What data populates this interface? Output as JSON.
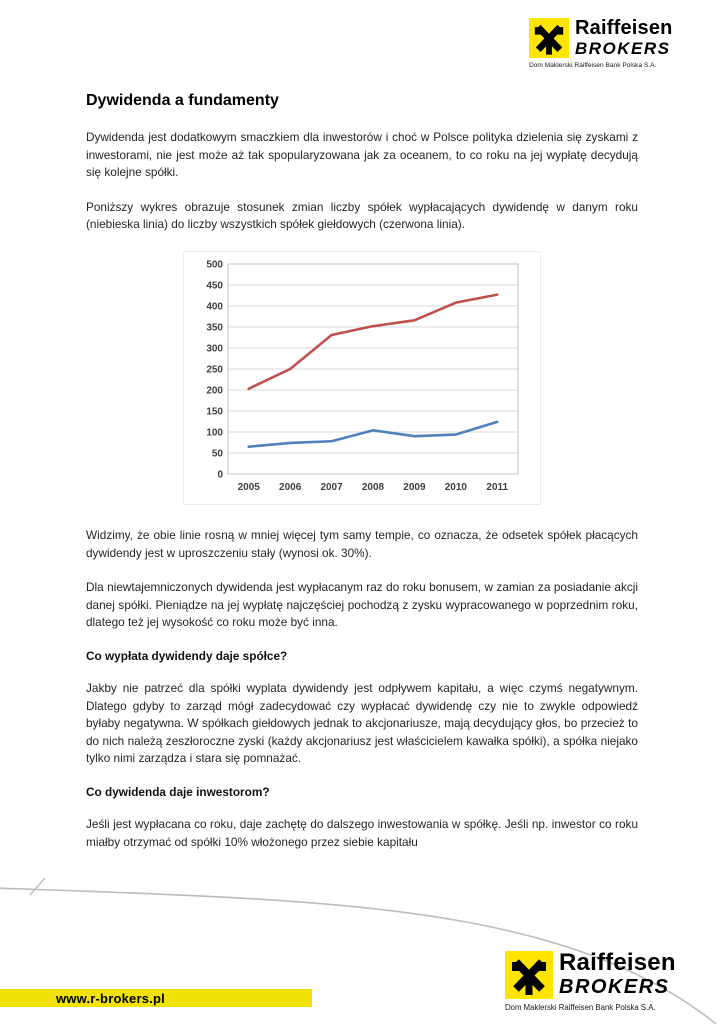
{
  "brand": {
    "name": "Raiffeisen",
    "sub": "BROKERS",
    "tagline": "Dom Maklerski Raiffeisen Bank Polska S.A."
  },
  "article": {
    "title": "Dywidenda a fundamenty",
    "p1": "Dywidenda jest dodatkowym smaczkiem dla inwestorów i choć w Polsce polityka dzielenia się zyskami z inwestorami, nie jest może aż tak spopularyzowana jak za oceanem, to co roku na jej wypłatę decydują się kolejne spółki.",
    "p2": "Poniższy wykres obrazuje stosunek zmian liczby spółek wypłacających dywidendę w danym roku (niebieska linia)  do liczby wszystkich spółek giełdowych (czerwona linia).",
    "p3": "Widzimy, że obie linie rosną w mniej więcej tym samy tempie, co oznacza, że odsetek spółek płacących dywidendy jest w uproszczeniu stały (wynosi ok. 30%).",
    "p4": "Dla niewtajemniczonych dywidenda jest wypłacanym raz do roku bonusem, w zamian za posiadanie akcji danej spółki. Pieniądze na jej wypłatę najczęściej pochodzą z zysku wypracowanego w poprzednim roku, dlatego też jej wysokość co roku może być inna.",
    "h2a": "Co wypłata dywidendy daje spółce?",
    "p5": "Jakby nie patrzeć dla spółki wyplata dywidendy jest odpływem kapitału, a więc czymś negatywnym. Dlatego gdyby to zarząd mógł zadecydować czy wypłacać dywidendę czy nie to zwykle odpowiedź byłaby negatywna. W spółkach giełdowych jednak to akcjonariusze, mają decydujący głos, bo przecież to do nich należą zeszłoroczne zyski (każdy akcjonariusz jest właścicielem kawałka spółki), a spółka niejako tylko nimi zarządza i stara się pomnażać.",
    "h2b": "Co dywidenda daje inwestorom?",
    "p6": "Jeśli jest wypłacana co roku, daje zachętę do dalszego inwestowania w spółkę. Jeśli np. inwestor co roku miałby otrzymać od spółki 10% włożonego przez siebie kapitału"
  },
  "chart_data": {
    "type": "line",
    "x": [
      "2005",
      "2006",
      "2007",
      "2008",
      "2009",
      "2010",
      "2011"
    ],
    "series": [
      {
        "name": "liczba wszystkich spółek giełdowych (czerwona linia)",
        "color": "#c0504d",
        "values": [
          203,
          250,
          331,
          352,
          366,
          408,
          427
        ]
      },
      {
        "name": "liczba spółek wypłacających dywidendę (niebieska linia)",
        "color": "#4f81bd",
        "values": [
          65,
          74,
          78,
          104,
          90,
          94,
          124
        ]
      }
    ],
    "title": "",
    "xlabel": "",
    "ylabel": "",
    "ylim": [
      0,
      500
    ],
    "ytick_step": 50,
    "grid": true,
    "legend": "none",
    "grid_color": "#d9d9d9",
    "axis_label_color": "#404040"
  },
  "footer": {
    "url": "www.r-brokers.pl"
  }
}
